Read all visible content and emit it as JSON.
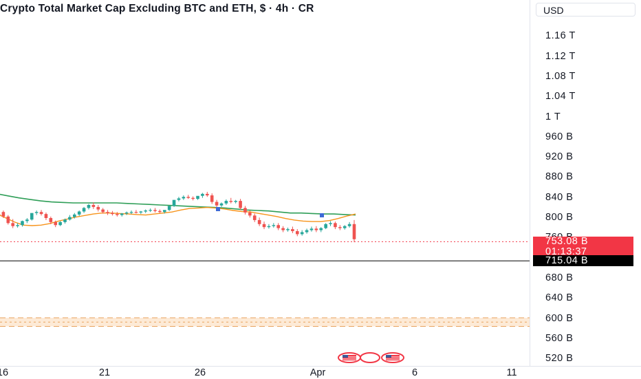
{
  "title": "Crypto Total Market Cap Excluding BTC and ETH, $ · 4h · CR",
  "currency": "USD",
  "colors": {
    "up": "#26a69a",
    "down": "#ef5350",
    "ma_fast": "#f7931a",
    "ma_slow": "#2e9e57",
    "zone_fill": "#fce3c8",
    "last_bg": "#f23645",
    "line_bg": "#000000"
  },
  "chart_data": {
    "type": "candlestick",
    "y_unit": "USD",
    "ylim": [
      500,
      1210
    ],
    "y_ticks": [
      {
        "v": 1160,
        "label": "1.16 T"
      },
      {
        "v": 1120,
        "label": "1.12 T"
      },
      {
        "v": 1080,
        "label": "1.08 T"
      },
      {
        "v": 1040,
        "label": "1.04 T"
      },
      {
        "v": 1000,
        "label": "1 T"
      },
      {
        "v": 960,
        "label": "960 B"
      },
      {
        "v": 920,
        "label": "920 B"
      },
      {
        "v": 880,
        "label": "880 B"
      },
      {
        "v": 840,
        "label": "840 B"
      },
      {
        "v": 800,
        "label": "800 B"
      },
      {
        "v": 760,
        "label": "760 B"
      },
      {
        "v": 680,
        "label": "680 B"
      },
      {
        "v": 640,
        "label": "640 B"
      },
      {
        "v": 600,
        "label": "600 B"
      },
      {
        "v": 560,
        "label": "560 B"
      },
      {
        "v": 520,
        "label": "520 B"
      }
    ],
    "x_ticks": [
      "16",
      "21",
      "26",
      "Apr",
      "6",
      "11"
    ],
    "last_price": {
      "value": 753.08,
      "label": "753.08 B",
      "countdown": "01:13:37"
    },
    "horizontal_line": {
      "value": 715.04,
      "label": "715.04 B"
    },
    "support_zone": [
      585,
      602
    ],
    "ma_fast": [
      808,
      800,
      792,
      786,
      785,
      786,
      789,
      794,
      798,
      802,
      805,
      808,
      810,
      810,
      809,
      808,
      807,
      806,
      808,
      810,
      812,
      816,
      819,
      820,
      821,
      820,
      818,
      815,
      813,
      812,
      809,
      806,
      803,
      799,
      796,
      794,
      793,
      793,
      795,
      799,
      804,
      808
    ],
    "ma_slow": [
      848,
      844,
      840,
      837,
      834,
      832,
      831,
      830,
      830,
      830,
      830,
      830,
      829,
      828,
      827,
      826,
      825,
      824,
      823,
      822,
      821,
      820,
      818,
      816,
      815,
      814,
      812,
      810,
      810,
      809,
      808,
      808,
      807,
      806
    ],
    "candles": [
      [
        808,
        812,
        806,
        804
      ],
      [
        812,
        815,
        803,
        800
      ],
      [
        803,
        806,
        790,
        787
      ],
      [
        790,
        798,
        784,
        780
      ],
      [
        784,
        790,
        786,
        781
      ],
      [
        786,
        795,
        794,
        783
      ],
      [
        794,
        800,
        797,
        790
      ],
      [
        797,
        808,
        810,
        795
      ],
      [
        810,
        815,
        812,
        806
      ],
      [
        812,
        816,
        808,
        805
      ],
      [
        808,
        811,
        800,
        796
      ],
      [
        800,
        803,
        792,
        788
      ],
      [
        792,
        795,
        786,
        782
      ],
      [
        786,
        794,
        792,
        784
      ],
      [
        792,
        799,
        797,
        789
      ],
      [
        797,
        806,
        802,
        795
      ],
      [
        802,
        810,
        807,
        799
      ],
      [
        807,
        815,
        813,
        804
      ],
      [
        813,
        822,
        820,
        810
      ],
      [
        820,
        828,
        826,
        817
      ],
      [
        826,
        831,
        822,
        818
      ],
      [
        822,
        826,
        817,
        813
      ],
      [
        817,
        820,
        812,
        809
      ],
      [
        812,
        816,
        810,
        806
      ],
      [
        810,
        814,
        808,
        805
      ],
      [
        808,
        812,
        806,
        803
      ],
      [
        806,
        810,
        809,
        803
      ],
      [
        809,
        813,
        811,
        806
      ],
      [
        811,
        815,
        812,
        808
      ],
      [
        812,
        816,
        811,
        809
      ],
      [
        811,
        814,
        813,
        808
      ],
      [
        813,
        817,
        815,
        810
      ],
      [
        815,
        819,
        816,
        812
      ],
      [
        816,
        820,
        814,
        811
      ],
      [
        814,
        817,
        812,
        810
      ],
      [
        812,
        815,
        816,
        809
      ],
      [
        816,
        822,
        824,
        814
      ],
      [
        824,
        832,
        836,
        822
      ],
      [
        836,
        842,
        839,
        833
      ],
      [
        839,
        845,
        842,
        836
      ],
      [
        842,
        846,
        840,
        838
      ],
      [
        840,
        843,
        838,
        835
      ],
      [
        838,
        842,
        844,
        836
      ],
      [
        844,
        850,
        848,
        840
      ],
      [
        848,
        852,
        845,
        842
      ],
      [
        845,
        849,
        832,
        828
      ],
      [
        832,
        836,
        825,
        821
      ],
      [
        825,
        831,
        829,
        822
      ],
      [
        829,
        837,
        834,
        826
      ],
      [
        834,
        840,
        832,
        829
      ],
      [
        832,
        836,
        834,
        829
      ],
      [
        834,
        838,
        820,
        816
      ],
      [
        820,
        824,
        811,
        807
      ],
      [
        811,
        815,
        805,
        801
      ],
      [
        805,
        809,
        796,
        792
      ],
      [
        796,
        801,
        788,
        784
      ],
      [
        788,
        793,
        782,
        778
      ],
      [
        782,
        788,
        784,
        779
      ],
      [
        784,
        790,
        786,
        781
      ],
      [
        786,
        790,
        780,
        776
      ],
      [
        780,
        784,
        776,
        772
      ],
      [
        776,
        781,
        778,
        773
      ],
      [
        778,
        783,
        774,
        770
      ],
      [
        774,
        778,
        768,
        764
      ],
      [
        768,
        776,
        772,
        765
      ],
      [
        772,
        779,
        776,
        769
      ],
      [
        776,
        783,
        779,
        773
      ],
      [
        779,
        784,
        776,
        772
      ],
      [
        776,
        782,
        780,
        772
      ],
      [
        780,
        790,
        788,
        778
      ],
      [
        788,
        794,
        790,
        784
      ],
      [
        790,
        793,
        782,
        778
      ],
      [
        782,
        786,
        780,
        776
      ],
      [
        780,
        786,
        784,
        777
      ],
      [
        784,
        792,
        788,
        781
      ],
      [
        788,
        796,
        758,
        752
      ]
    ]
  }
}
